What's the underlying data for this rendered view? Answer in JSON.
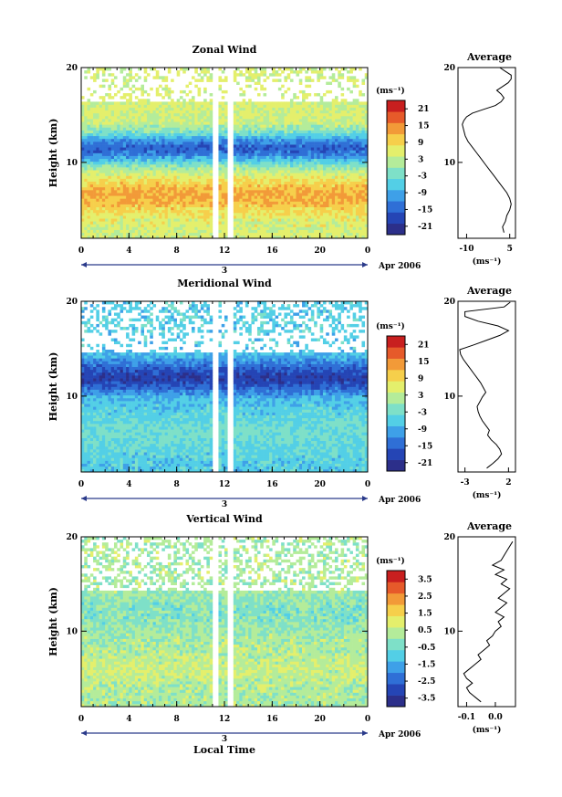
{
  "colorscale": [
    "#2c2f8a",
    "#2545b5",
    "#2f6fd6",
    "#3ea0e8",
    "#53cfe6",
    "#7ee0c8",
    "#b4ec9a",
    "#e4ef6c",
    "#f6cf4b",
    "#f29a38",
    "#e65a2a",
    "#c81f1f"
  ],
  "contour_color": "#000000",
  "chart_data": [
    {
      "type": "heatmap",
      "title": "Zonal Wind",
      "ylabel": "Height (km)",
      "xlabel": "",
      "x_ticks": [
        "0",
        "4",
        "8",
        "12",
        "16",
        "20",
        "0"
      ],
      "y_ticks": [
        "20",
        "10"
      ],
      "date_label": "Apr 2006",
      "day_labels": [
        "3"
      ],
      "xlim": [
        0,
        24
      ],
      "ylim": [
        2,
        20
      ],
      "colorbar": {
        "unit": "(ms⁻¹)",
        "ticks": [
          "21",
          "15",
          "9",
          "3",
          "-3",
          "-9",
          "-15",
          "-21"
        ],
        "range": [
          -24,
          24
        ]
      },
      "profile": {
        "title": "Average",
        "xlabel": "(ms⁻¹)",
        "x_ticks": [
          "-10",
          "5"
        ],
        "y_ticks": [
          "20",
          "10"
        ],
        "xlim": [
          -13,
          7
        ],
        "z": [
          3.0,
          2.5,
          3.5,
          4.0,
          5.0,
          5.5,
          5.0,
          4.0,
          2.5,
          1.0,
          -0.5,
          -2.0,
          -3.5,
          -5.0,
          -6.5,
          -8.0,
          -9.5,
          -10.5,
          -11.0,
          -11.5,
          -11.0,
          -10.0,
          -8.0,
          -4.0,
          0.0,
          2.0,
          3.0,
          2.0,
          0.5,
          2.5,
          4.5,
          5.5,
          5.5,
          3.5,
          1.5
        ],
        "h": [
          2.6,
          3.2,
          3.8,
          4.4,
          5.0,
          5.6,
          6.2,
          6.8,
          7.4,
          8.0,
          8.6,
          9.2,
          9.8,
          10.4,
          11.0,
          11.6,
          12.2,
          12.8,
          13.4,
          14.0,
          14.4,
          14.8,
          15.2,
          15.6,
          16.0,
          16.4,
          16.8,
          17.2,
          17.6,
          18.0,
          18.4,
          18.8,
          19.2,
          19.6,
          20.0
        ]
      },
      "model": {
        "base": 5,
        "amp": 8,
        "h0": 6.5,
        "h1": 11.5,
        "dmin": -20,
        "gap_low": 16.5,
        "gap_high": 18.5,
        "noise": 3
      }
    },
    {
      "type": "heatmap",
      "title": "Meridional Wind",
      "ylabel": "Height (km)",
      "xlabel": "",
      "x_ticks": [
        "0",
        "4",
        "8",
        "12",
        "16",
        "20",
        "0"
      ],
      "y_ticks": [
        "20",
        "10"
      ],
      "date_label": "Apr 2006",
      "day_labels": [
        "3"
      ],
      "xlim": [
        0,
        24
      ],
      "ylim": [
        2,
        20
      ],
      "colorbar": {
        "unit": "(ms⁻¹)",
        "ticks": [
          "21",
          "15",
          "9",
          "3",
          "-3",
          "-9",
          "-15",
          "-21"
        ],
        "range": [
          -24,
          24
        ]
      },
      "profile": {
        "title": "Average",
        "xlabel": "(ms⁻¹)",
        "x_ticks": [
          "-3",
          "2"
        ],
        "y_ticks": [
          "20",
          "10"
        ],
        "xlim": [
          -3.8,
          2.8
        ],
        "z": [
          -0.5,
          0.2,
          0.8,
          1.2,
          1.0,
          0.6,
          0.0,
          -0.4,
          -0.2,
          -0.6,
          -1.0,
          -1.3,
          -1.5,
          -1.6,
          -1.3,
          -1.0,
          -0.6,
          -0.9,
          -1.2,
          -1.6,
          -2.0,
          -2.4,
          -2.8,
          -3.2,
          -3.5,
          -3.6,
          -2.0,
          -0.5,
          1.0,
          2.0,
          0.8,
          -1.5,
          -3.0,
          -3.0,
          1.5,
          2.2
        ],
        "h": [
          2.4,
          2.9,
          3.4,
          3.9,
          4.4,
          4.9,
          5.4,
          5.9,
          6.4,
          6.9,
          7.4,
          7.9,
          8.4,
          8.9,
          9.4,
          9.9,
          10.4,
          10.9,
          11.4,
          11.9,
          12.4,
          12.9,
          13.4,
          13.9,
          14.4,
          14.9,
          15.4,
          15.9,
          16.4,
          16.9,
          17.4,
          17.9,
          18.4,
          18.9,
          19.4,
          19.9
        ]
      },
      "model": {
        "base": -6,
        "amp": 3,
        "h0": 6,
        "h1": 12,
        "dmin": -13,
        "gap_low": 14.5,
        "gap_high": 16.8,
        "noise": 3
      }
    },
    {
      "type": "heatmap",
      "title": "Vertical Wind",
      "ylabel": "Height (km)",
      "xlabel": "Local Time",
      "x_ticks": [
        "0",
        "4",
        "8",
        "12",
        "16",
        "20",
        "0"
      ],
      "y_ticks": [
        "20",
        "10"
      ],
      "date_label": "Apr 2006",
      "day_labels": [
        "3"
      ],
      "xlim": [
        0,
        24
      ],
      "ylim": [
        2,
        20
      ],
      "colorbar": {
        "unit": "(ms⁻¹)",
        "ticks": [
          "3.5",
          "2.5",
          "1.5",
          "0.5",
          "-0.5",
          "-1.5",
          "-2.5",
          "-3.5"
        ],
        "range": [
          -4,
          4
        ]
      },
      "profile": {
        "title": "Average",
        "xlabel": "(ms⁻¹)",
        "x_ticks": [
          "-0.1",
          "0.0"
        ],
        "y_ticks": [
          "20",
          "10"
        ],
        "xlim": [
          -0.13,
          0.07
        ],
        "z": [
          -0.05,
          -0.07,
          -0.09,
          -0.1,
          -0.08,
          -0.1,
          -0.11,
          -0.09,
          -0.07,
          -0.05,
          -0.06,
          -0.04,
          -0.02,
          -0.03,
          -0.01,
          0.0,
          0.02,
          0.01,
          0.03,
          0.0,
          0.02,
          0.04,
          0.01,
          0.03,
          0.05,
          0.02,
          0.04,
          0.0,
          0.03,
          -0.01,
          0.02,
          0.04,
          0.06
        ],
        "h": [
          2.5,
          3.0,
          3.5,
          4.0,
          4.5,
          5.0,
          5.5,
          6.0,
          6.5,
          7.0,
          7.5,
          8.0,
          8.5,
          9.0,
          9.5,
          10.0,
          10.5,
          11.0,
          11.5,
          12.0,
          12.5,
          13.0,
          13.5,
          14.0,
          14.5,
          15.0,
          15.5,
          16.0,
          16.5,
          17.0,
          17.5,
          18.5,
          19.5
        ]
      },
      "model": {
        "base": 0.2,
        "amp": 0.4,
        "h0": 6,
        "h1": 12,
        "dmin": -0.5,
        "gap_low": 14.2,
        "gap_high": 15.0,
        "noise": 0.6
      }
    }
  ]
}
